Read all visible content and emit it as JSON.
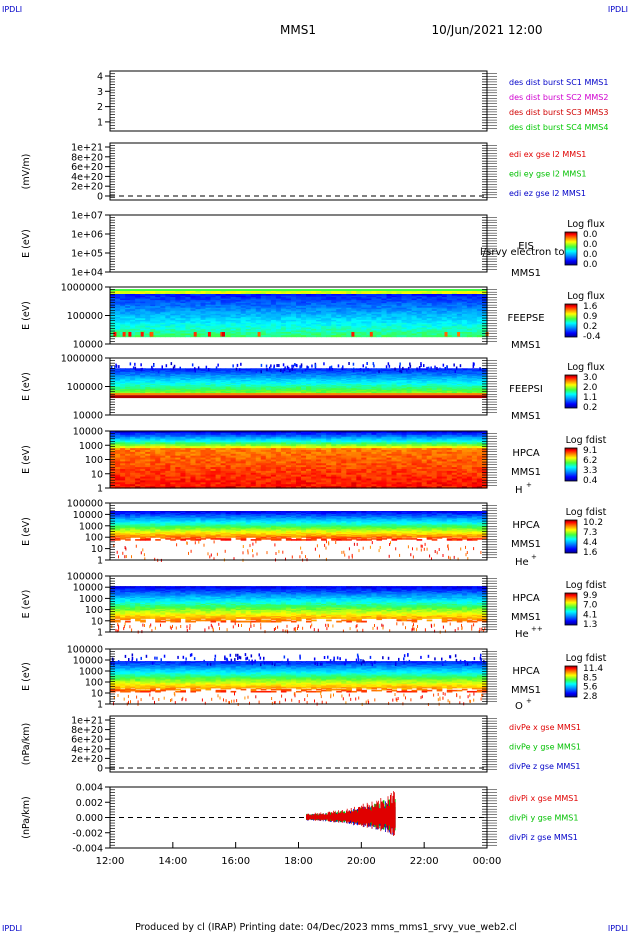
{
  "header": {
    "corner_tl": "IPDLI",
    "corner_tr": "IPDLI",
    "corner_bl": "IPDLI",
    "corner_br": "IPDLI",
    "mission": "MMS1",
    "datetime": "10/Jun/2021 12:00"
  },
  "footer": {
    "text": "Produced by cl (IRAP)   Printing date: 04/Dec/2023   mms_mms1_srvy_vue_web2.cl"
  },
  "colors": {
    "mms1": "#0000c8",
    "mms2": "#d000d0",
    "mms3": "#d00000",
    "mms4": "#00c800",
    "red": "#e00000",
    "green": "#00c000",
    "blue": "#0000c8"
  },
  "chart_data": {
    "type": "heatmap",
    "x_ticks": [
      "12:00",
      "14:00",
      "16:00",
      "18:00",
      "20:00",
      "22:00",
      "00:00"
    ],
    "colorscale": [
      "#000090",
      "#0000ff",
      "#00a0ff",
      "#00ffff",
      "#00ff80",
      "#80ff00",
      "#ffff00",
      "#ff8000",
      "#ff0000",
      "#800000"
    ],
    "panels": [
      {
        "id": "burst",
        "type": "table",
        "ylabel": "",
        "yticks": [
          "4",
          "3",
          "2",
          "1"
        ],
        "legend": [
          {
            "text": "des dist burst SC1 MMS1",
            "color": "#0000c8"
          },
          {
            "text": "des dist burst SC2 MMS2",
            "color": "#d000d0"
          },
          {
            "text": "des dist burst SC3 MMS3",
            "color": "#d00000"
          },
          {
            "text": "des dist burst SC4 MMS4",
            "color": "#00c800"
          }
        ]
      },
      {
        "id": "edi",
        "type": "line",
        "ylabel": "(mV/m)",
        "yticks": [
          "1e+21",
          "8e+20",
          "6e+20",
          "4e+20",
          "2e+20",
          "0"
        ],
        "zero_line": true,
        "legend": [
          {
            "text": "edi ex gse l2 MMS1",
            "color": "#e00000"
          },
          {
            "text": "edi ey gse l2 MMS1",
            "color": "#00c000"
          },
          {
            "text": "edi ez gse l2 MMS1",
            "color": "#0000c8"
          }
        ]
      },
      {
        "id": "eis",
        "type": "heatmap",
        "ylabel": "E (eV)",
        "yticks": [
          "1e+07",
          "1e+06",
          "1e+05",
          "1e+04"
        ],
        "inst1": "EIS",
        "inst2": "MMS1",
        "overlay": "l/srvy electron to",
        "cb_title": "Log flux",
        "cb_labels": [
          "0.0",
          "0.0",
          "0.0",
          "0.0"
        ],
        "fill": "none"
      },
      {
        "id": "feepse",
        "type": "heatmap",
        "ylabel": "E (eV)",
        "yticks": [
          "1000000",
          "100000",
          "10000"
        ],
        "inst1": "FEEPSE",
        "inst2": "MMS1",
        "cb_title": "Log flux",
        "cb_labels": [
          "1.6",
          "0.9",
          "0.2",
          "-0.4"
        ],
        "fill": "feepse"
      },
      {
        "id": "feepsi",
        "type": "heatmap",
        "ylabel": "E (eV)",
        "yticks": [
          "1000000",
          "100000",
          "10000"
        ],
        "inst1": "FEEPSI",
        "inst2": "MMS1",
        "cb_title": "Log flux",
        "cb_labels": [
          "3.0",
          "2.0",
          "1.1",
          "0.2"
        ],
        "fill": "feepsi"
      },
      {
        "id": "hpca_h",
        "type": "heatmap",
        "ylabel": "E (eV)",
        "yticks": [
          "10000",
          "1000",
          "100",
          "10",
          "1"
        ],
        "inst1": "HPCA",
        "inst2": "MMS1",
        "species": "H",
        "species_sup": "+",
        "cb_title": "Log fdist",
        "cb_labels": [
          "9.1",
          "6.2",
          "3.3",
          "0.4"
        ],
        "fill": "hpca_h"
      },
      {
        "id": "hpca_he",
        "type": "heatmap",
        "ylabel": "E (eV)",
        "yticks": [
          "100000",
          "10000",
          "1000",
          "100",
          "10",
          "1"
        ],
        "inst1": "HPCA",
        "inst2": "MMS1",
        "species": "He",
        "species_sup": "+",
        "cb_title": "Log fdist",
        "cb_labels": [
          "10.2",
          "7.3",
          "4.4",
          "1.6"
        ],
        "fill": "hpca_he"
      },
      {
        "id": "hpca_he2",
        "type": "heatmap",
        "ylabel": "E (eV)",
        "yticks": [
          "100000",
          "10000",
          "1000",
          "100",
          "10",
          "1"
        ],
        "inst1": "HPCA",
        "inst2": "MMS1",
        "species": "He",
        "species_sup": "++",
        "cb_title": "Log fdist",
        "cb_labels": [
          "9.9",
          "7.0",
          "4.1",
          "1.3"
        ],
        "fill": "hpca_he2"
      },
      {
        "id": "hpca_o",
        "type": "heatmap",
        "ylabel": "E (eV)",
        "yticks": [
          "100000",
          "10000",
          "1000",
          "100",
          "10",
          "1"
        ],
        "inst1": "HPCA",
        "inst2": "MMS1",
        "species": "O",
        "species_sup": "+",
        "cb_title": "Log fdist",
        "cb_labels": [
          "11.4",
          "8.5",
          "5.6",
          "2.8"
        ],
        "fill": "hpca_o"
      },
      {
        "id": "divpe",
        "type": "line",
        "ylabel": "(nPa/km)",
        "yticks": [
          "1e+21",
          "8e+20",
          "6e+20",
          "4e+20",
          "2e+20",
          "0"
        ],
        "zero_line": true,
        "legend": [
          {
            "text": "divPe x gse MMS1",
            "color": "#e00000"
          },
          {
            "text": "divPe y gse MMS1",
            "color": "#00c000"
          },
          {
            "text": "divPe z gse MMS1",
            "color": "#0000c8"
          }
        ]
      },
      {
        "id": "divpi",
        "type": "line",
        "ylabel": "(nPa/km)",
        "yticks": [
          "0.004",
          "0.002",
          "0.000",
          "-0.002",
          "-0.004"
        ],
        "zero_line": true,
        "ylim": [
          -0.004,
          0.004
        ],
        "burst_start": "18:15",
        "burst_end": "21:05",
        "peak_amplitude": 0.003,
        "legend": [
          {
            "text": "divPi x gse MMS1",
            "color": "#e00000"
          },
          {
            "text": "divPi y gse MMS1",
            "color": "#00c000"
          },
          {
            "text": "divPi z gse MMS1",
            "color": "#0000c8"
          }
        ]
      }
    ]
  }
}
